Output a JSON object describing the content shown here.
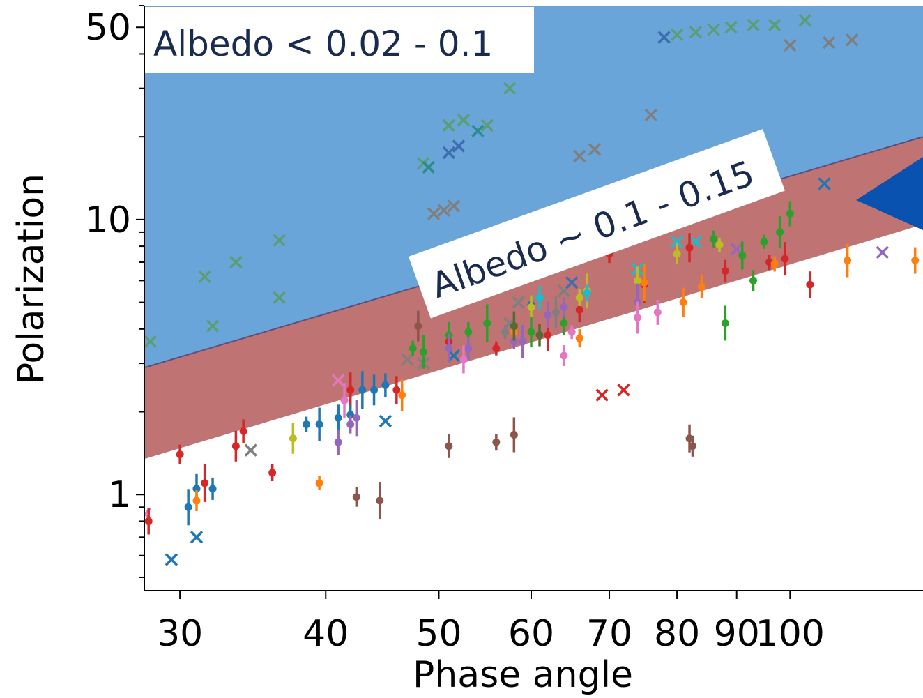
{
  "chart_data": {
    "type": "scatter",
    "xlabel": "Phase angle",
    "ylabel": "Polarization",
    "xscale": "log",
    "yscale": "log",
    "xlim": [
      28,
      130
    ],
    "ylim": [
      0.45,
      60
    ],
    "xticks": [
      30,
      40,
      50,
      60,
      70,
      80,
      90,
      100
    ],
    "yticks": [
      1,
      10,
      50
    ],
    "xtick_labels": [
      "30",
      "40",
      "50",
      "60",
      "70",
      "80",
      "90",
      "100"
    ],
    "ytick_labels": [
      "1",
      "10",
      "50"
    ],
    "grid": false,
    "regions": [
      {
        "name": "Albedo < 0.02 - 0.1",
        "color": "#6aa5da",
        "lower_line": [
          [
            28,
            2.9
          ],
          [
            130,
            20
          ]
        ],
        "upper": "top"
      },
      {
        "name": "Albedo ~ 0.1 - 0.15",
        "color": "#c07373",
        "lower_line": [
          [
            28,
            1.35
          ],
          [
            130,
            9.6
          ]
        ],
        "upper_line": [
          [
            28,
            2.9
          ],
          [
            130,
            20
          ]
        ]
      }
    ],
    "series": [
      {
        "marker": "x",
        "color": "#5c9e74",
        "points": [
          [
            28.3,
            3.6
          ],
          [
            32,
            4.1
          ],
          [
            31.5,
            6.2
          ],
          [
            33.5,
            7.0
          ],
          [
            36.5,
            5.2
          ],
          [
            36.5,
            8.4
          ],
          [
            48.5,
            16.0
          ],
          [
            51,
            22
          ],
          [
            52.5,
            23
          ],
          [
            55,
            22
          ],
          [
            57.5,
            30
          ],
          [
            80,
            47
          ],
          [
            83,
            48
          ],
          [
            86,
            49
          ],
          [
            89,
            50
          ],
          [
            93,
            51
          ],
          [
            97,
            51
          ],
          [
            103,
            53
          ]
        ]
      },
      {
        "marker": "x",
        "color": "#2b8c8c",
        "points": [
          [
            49,
            15.5
          ],
          [
            54,
            21
          ]
        ]
      },
      {
        "marker": "x",
        "color": "#7f7f7f",
        "points": [
          [
            34.5,
            1.45
          ],
          [
            47,
            3.1
          ],
          [
            48.5,
            3.0
          ],
          [
            49.5,
            10.5
          ],
          [
            50.5,
            10.8
          ],
          [
            51.5,
            11.2
          ],
          [
            57.5,
            4.2
          ],
          [
            58.5,
            5.0
          ],
          [
            64,
            5.5
          ],
          [
            66,
            17
          ],
          [
            68,
            18
          ],
          [
            76,
            24
          ],
          [
            100,
            43
          ],
          [
            108,
            44
          ],
          [
            113,
            45
          ]
        ]
      },
      {
        "marker": "x",
        "color": "#3d6fb0",
        "points": [
          [
            51,
            17.5
          ],
          [
            52,
            18.5
          ],
          [
            65,
            5.9
          ],
          [
            78,
            46
          ]
        ]
      },
      {
        "marker": "x",
        "color": "#1f77b4",
        "points": [
          [
            29.5,
            0.58
          ],
          [
            31,
            0.7
          ],
          [
            45,
            1.85
          ],
          [
            51.5,
            3.2
          ],
          [
            107,
            13.5
          ]
        ]
      },
      {
        "marker": "x",
        "color": "#e377c2",
        "points": [
          [
            28,
            0.85
          ],
          [
            41,
            2.6
          ]
        ]
      },
      {
        "marker": "x",
        "color": "#17becf",
        "points": [
          [
            74,
            6.6
          ],
          [
            80,
            8.3
          ],
          [
            83,
            8.3
          ]
        ]
      },
      {
        "marker": "x",
        "color": "#9467bd",
        "points": [
          [
            90,
            7.8
          ],
          [
            120,
            7.6
          ]
        ]
      },
      {
        "marker": "x",
        "color": "#d62728",
        "points": [
          [
            69,
            2.3
          ],
          [
            72,
            2.4
          ]
        ]
      },
      {
        "marker": "o",
        "color": "#d62728",
        "points": [
          [
            28.2,
            0.8
          ],
          [
            30,
            1.4
          ],
          [
            31.5,
            1.1
          ],
          [
            33.5,
            1.5
          ],
          [
            34,
            1.7
          ],
          [
            36,
            1.2
          ],
          [
            42,
            2.4
          ],
          [
            46,
            2.4
          ],
          [
            51,
            3.6
          ],
          [
            56,
            3.4
          ],
          [
            62,
            3.8
          ],
          [
            66,
            4.7
          ],
          [
            70,
            7.5
          ],
          [
            75,
            5.8
          ],
          [
            82,
            7.9
          ],
          [
            88,
            6.5
          ],
          [
            96,
            7.0
          ],
          [
            99,
            7.2
          ],
          [
            104,
            5.8
          ]
        ]
      },
      {
        "marker": "o",
        "color": "#1f77b4",
        "points": [
          [
            30.5,
            0.9
          ],
          [
            31,
            1.05
          ],
          [
            32,
            1.05
          ],
          [
            38.5,
            1.8
          ],
          [
            39.5,
            1.8
          ],
          [
            41,
            1.9
          ],
          [
            42,
            1.95
          ],
          [
            43,
            2.4
          ],
          [
            44,
            2.4
          ],
          [
            45,
            2.5
          ],
          [
            60,
            4.9
          ]
        ]
      },
      {
        "marker": "o",
        "color": "#ff7f0e",
        "points": [
          [
            31,
            0.95
          ],
          [
            39.5,
            1.1
          ],
          [
            46.5,
            2.3
          ],
          [
            58,
            3.9
          ],
          [
            66,
            3.7
          ],
          [
            75,
            5.9
          ],
          [
            81,
            5.0
          ],
          [
            84,
            5.7
          ],
          [
            97,
            6.9
          ],
          [
            112,
            7.1
          ],
          [
            128,
            7.1
          ]
        ]
      },
      {
        "marker": "o",
        "color": "#bcbd22",
        "points": [
          [
            37.5,
            1.6
          ],
          [
            60,
            4.8
          ],
          [
            66,
            5.2
          ],
          [
            67,
            5.5
          ],
          [
            74,
            6.0
          ],
          [
            80,
            7.5
          ],
          [
            87,
            8.1
          ]
        ]
      },
      {
        "marker": "o",
        "color": "#2ca02c",
        "points": [
          [
            47.5,
            3.4
          ],
          [
            48.5,
            3.3
          ],
          [
            51,
            3.8
          ],
          [
            53,
            3.9
          ],
          [
            55,
            4.2
          ],
          [
            60,
            3.9
          ],
          [
            64,
            4.2
          ],
          [
            86,
            8.5
          ],
          [
            88,
            4.2
          ],
          [
            91,
            7.4
          ],
          [
            93,
            6.0
          ],
          [
            95,
            8.3
          ],
          [
            98,
            9.0
          ],
          [
            100,
            10.5
          ]
        ]
      },
      {
        "marker": "o",
        "color": "#9467bd",
        "points": [
          [
            41,
            1.55
          ],
          [
            42,
            1.8
          ],
          [
            42.5,
            1.9
          ],
          [
            51,
            3.4
          ],
          [
            53,
            3.4
          ],
          [
            58,
            3.6
          ],
          [
            59,
            3.6
          ],
          [
            62,
            4.5
          ],
          [
            64,
            4.8
          ],
          [
            74,
            5.0
          ]
        ]
      },
      {
        "marker": "o",
        "color": "#e377c2",
        "points": [
          [
            41.5,
            2.2
          ],
          [
            52.5,
            3.1
          ],
          [
            64,
            3.2
          ],
          [
            65,
            3.9
          ],
          [
            74,
            4.4
          ],
          [
            77,
            4.6
          ]
        ]
      },
      {
        "marker": "o",
        "color": "#8c564b",
        "points": [
          [
            42.5,
            0.98
          ],
          [
            44.5,
            0.95
          ],
          [
            48,
            4.1
          ],
          [
            51,
            1.5
          ],
          [
            56,
            1.55
          ],
          [
            58,
            1.65
          ],
          [
            82,
            1.6
          ],
          [
            82.5,
            1.5
          ]
        ]
      },
      {
        "marker": "o",
        "color": "#556b2f",
        "points": [
          [
            58,
            4.1
          ],
          [
            61,
            3.8
          ]
        ]
      },
      {
        "marker": "o",
        "color": "#7f7f7f",
        "points": [
          [
            57,
            3.9
          ],
          [
            63,
            4.6
          ]
        ]
      },
      {
        "marker": "o",
        "color": "#17becf",
        "points": [
          [
            61,
            5.2
          ],
          [
            67,
            5.4
          ]
        ]
      }
    ],
    "annotations": [
      {
        "text": "Albedo < 0.02 - 0.1",
        "style": "white box, top-left"
      },
      {
        "text": "Albedo ~ 0.1 - 0.15",
        "style": "white box, rotated along band"
      }
    ],
    "arrow_color": "#0a52b0"
  }
}
